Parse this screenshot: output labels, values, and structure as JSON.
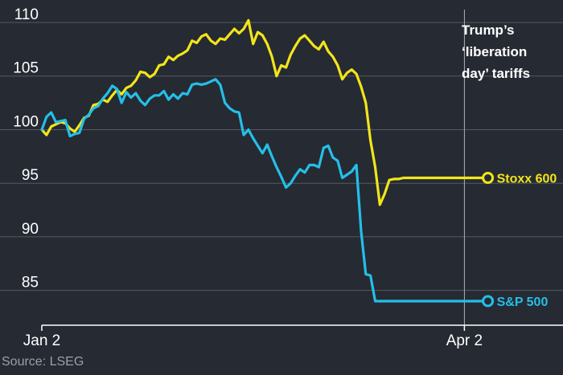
{
  "chart_data": {
    "type": "line",
    "xlabel": "",
    "ylabel": "",
    "ylim": [
      82.5,
      111.5
    ],
    "y_ticks": [
      "110",
      "105",
      "100",
      "95",
      "90",
      "85"
    ],
    "y_tick_values": [
      110,
      105,
      100,
      95,
      90,
      85
    ],
    "x_ticks": [
      "Jan 2",
      "Apr 2"
    ],
    "x_tick_days": [
      0,
      90
    ],
    "x_range_days": [
      0,
      111
    ],
    "grid": true,
    "annotation": {
      "lines": [
        "Trump’s",
        "‘liberation",
        "day’ tariffs"
      ],
      "day": 90
    },
    "source": "Source: LSEG",
    "colors": {
      "stoxx": "#f2e51a",
      "sp": "#24bfe8",
      "background": "#262a33",
      "grid": "#55595f"
    },
    "series": [
      {
        "name": "Stoxx 600",
        "key": "stoxx",
        "x": [
          0,
          1,
          2,
          3,
          4,
          5,
          6,
          7,
          8,
          9,
          10,
          11,
          12,
          13,
          14,
          15,
          16,
          17,
          18,
          19,
          20,
          21,
          22,
          23,
          24,
          25,
          26,
          27,
          28,
          29,
          30,
          31,
          32,
          33,
          34,
          35,
          36,
          37,
          38,
          39,
          40,
          41,
          42,
          43,
          44,
          45,
          46,
          47,
          48,
          49,
          50,
          51,
          52,
          53,
          54,
          55,
          56,
          57,
          58,
          59,
          60,
          61,
          62,
          63,
          64,
          65,
          66,
          67,
          68,
          69,
          70,
          71,
          72,
          73,
          74,
          75,
          76,
          77,
          78,
          79,
          80,
          81,
          82,
          83,
          84,
          85,
          86,
          87,
          88,
          89,
          90,
          91,
          92,
          93,
          94,
          95
        ],
        "y": [
          100.0,
          99.5,
          100.3,
          100.5,
          100.7,
          100.6,
          100.1,
          99.8,
          100.4,
          101.1,
          101.3,
          102.3,
          102.4,
          102.8,
          102.6,
          103.2,
          103.7,
          103.3,
          103.9,
          104.1,
          104.6,
          105.4,
          105.3,
          104.9,
          105.2,
          106.0,
          106.1,
          106.8,
          106.5,
          106.9,
          107.1,
          107.4,
          108.3,
          108.1,
          108.7,
          108.9,
          108.3,
          108.0,
          108.5,
          108.4,
          108.9,
          109.4,
          109.0,
          109.4,
          110.2,
          108.0,
          109.1,
          108.8,
          108.0,
          106.8,
          105.0,
          106.0,
          105.8,
          107.0,
          107.8,
          108.5,
          108.8,
          108.3,
          107.8,
          107.5,
          108.2,
          107.3,
          106.8,
          106.0,
          104.7,
          105.3,
          105.6,
          105.2,
          104.0,
          102.5,
          99.0,
          96.5,
          93.0,
          94.0,
          95.3,
          95.4,
          95.4,
          95.5,
          95.5,
          95.5,
          95.5,
          95.5,
          95.5,
          95.5,
          95.5,
          95.5,
          95.5,
          95.5,
          95.5,
          95.5,
          95.5,
          95.5,
          95.5,
          95.5,
          95.5,
          95.5
        ],
        "end_label": "Stoxx 600"
      },
      {
        "name": "S&P 500",
        "key": "sp",
        "x": [
          0,
          1,
          2,
          3,
          4,
          5,
          6,
          7,
          8,
          9,
          10,
          11,
          12,
          13,
          14,
          15,
          16,
          17,
          18,
          19,
          20,
          21,
          22,
          23,
          24,
          25,
          26,
          27,
          28,
          29,
          30,
          31,
          32,
          33,
          34,
          35,
          36,
          37,
          38,
          39,
          40,
          41,
          42,
          43,
          44,
          45,
          46,
          47,
          48,
          49,
          50,
          51,
          52,
          53,
          54,
          55,
          56,
          57,
          58,
          59,
          60,
          61,
          62,
          63,
          64,
          65,
          66,
          67,
          68,
          69,
          70,
          71,
          72,
          73,
          74,
          75,
          76,
          77,
          78,
          79,
          80,
          81,
          82,
          83,
          84,
          85,
          86,
          87,
          88,
          89,
          90,
          91,
          92,
          93,
          94,
          95
        ],
        "y": [
          100.0,
          101.2,
          101.6,
          100.7,
          100.8,
          100.9,
          99.4,
          99.6,
          99.7,
          101.0,
          101.4,
          102.0,
          102.2,
          102.9,
          103.4,
          104.1,
          103.8,
          102.5,
          103.5,
          103.0,
          103.4,
          102.7,
          102.3,
          102.9,
          103.2,
          103.2,
          103.6,
          102.8,
          103.3,
          102.9,
          103.4,
          103.3,
          104.2,
          104.3,
          104.2,
          104.3,
          104.5,
          104.7,
          104.2,
          102.5,
          102.0,
          101.7,
          101.6,
          99.5,
          100.0,
          99.2,
          98.5,
          97.8,
          98.6,
          97.5,
          96.5,
          95.6,
          94.6,
          95.0,
          95.7,
          96.3,
          96.0,
          96.7,
          96.7,
          96.5,
          98.3,
          98.5,
          97.4,
          97.1,
          95.5,
          95.8,
          96.1,
          96.7,
          90.5,
          86.5,
          86.4,
          84.0,
          84.0,
          84.0,
          84.0,
          84.0,
          84.0,
          84.0,
          84.0,
          84.0,
          84.0,
          84.0,
          84.0,
          84.0,
          84.0,
          84.0,
          84.0,
          84.0,
          84.0,
          84.0,
          84.0,
          84.0,
          84.0,
          84.0,
          84.0,
          84.0
        ],
        "end_label": "S&P 500"
      }
    ]
  }
}
